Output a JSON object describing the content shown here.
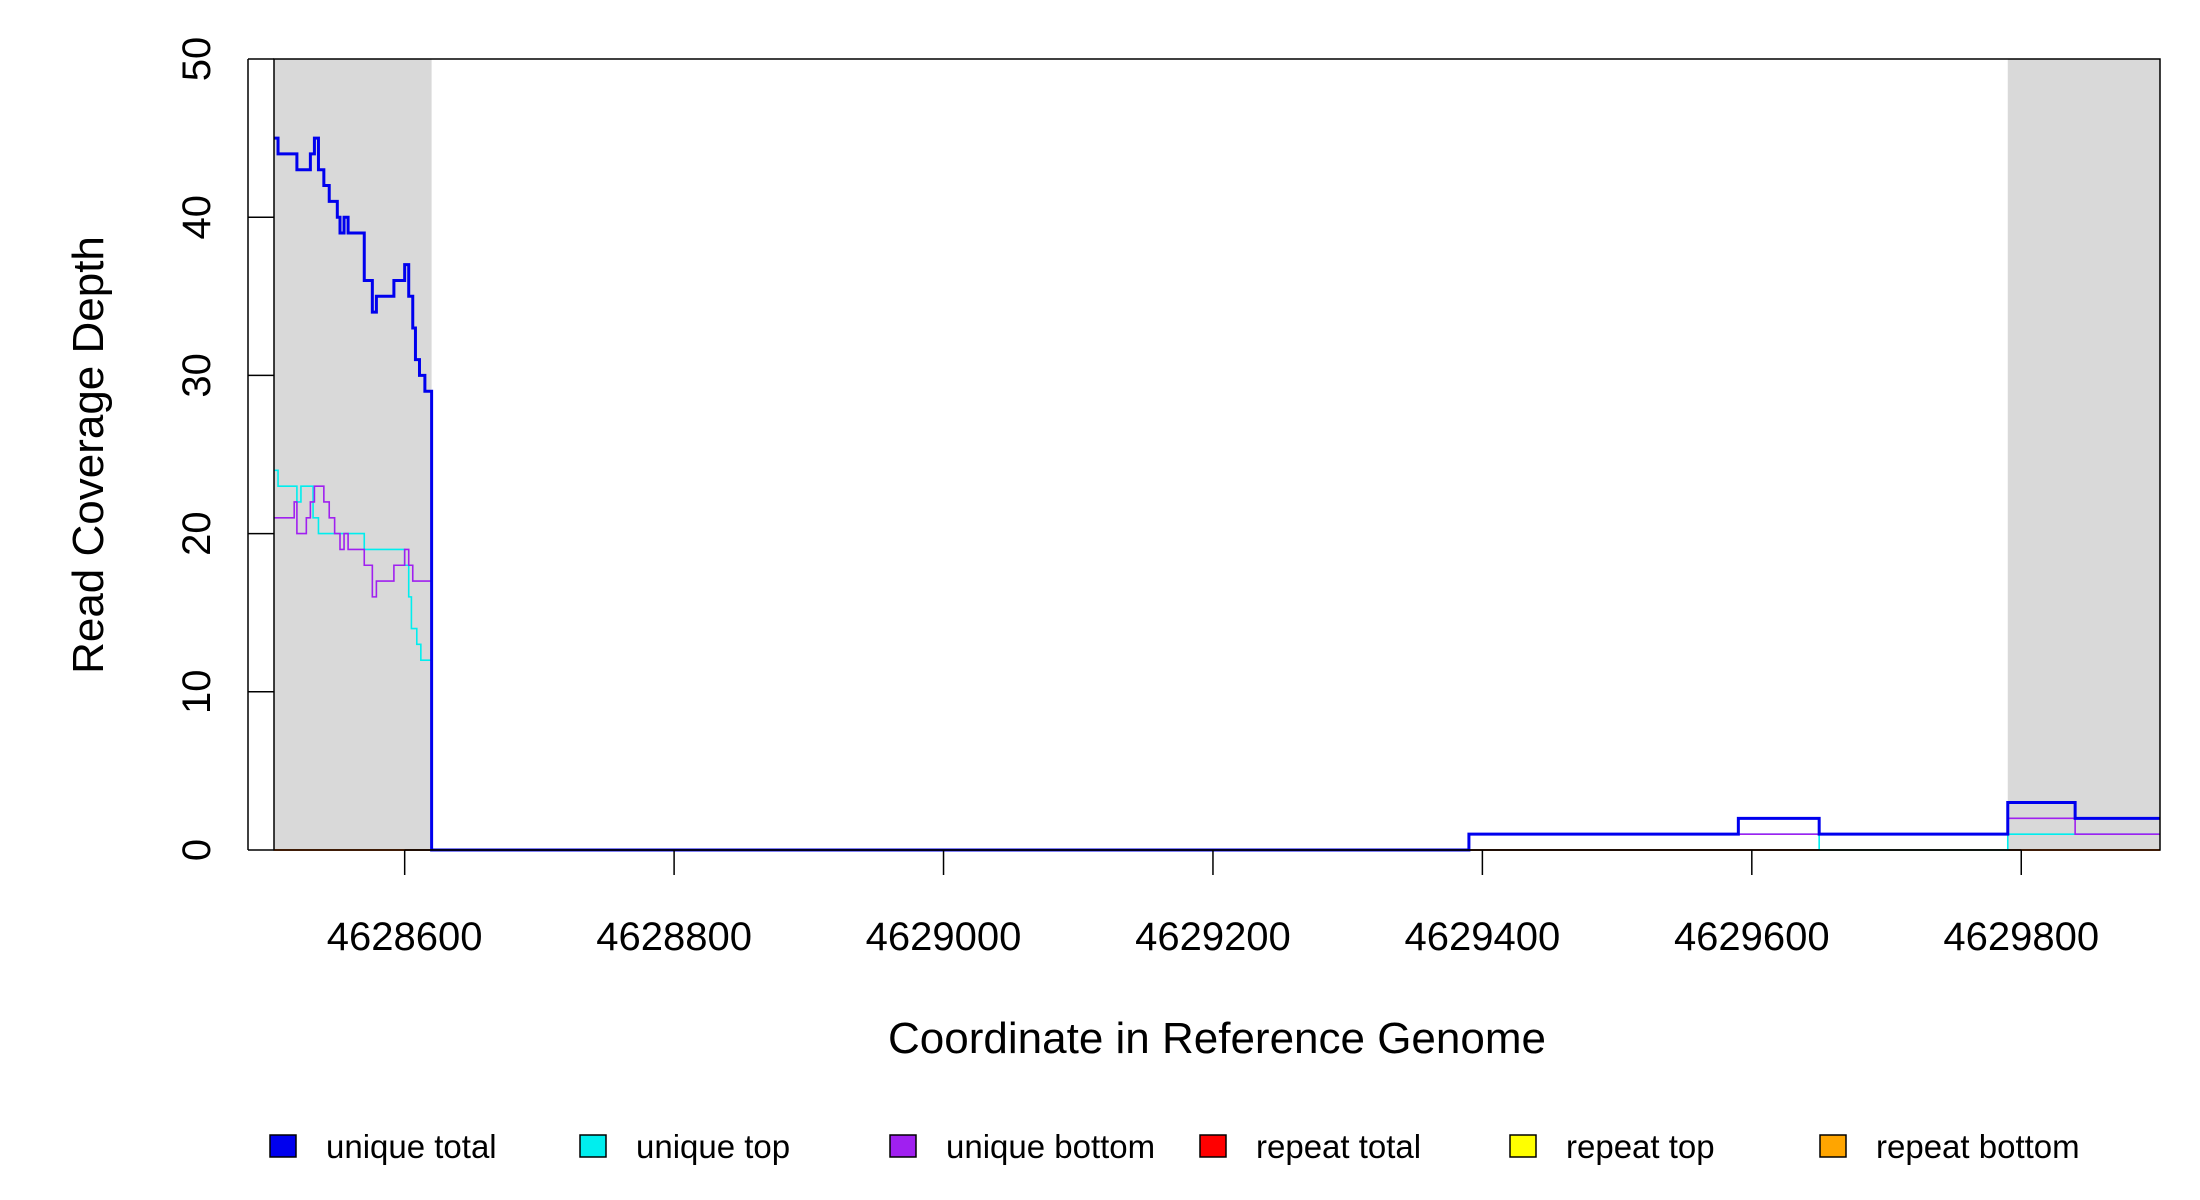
{
  "chart_data": {
    "type": "line",
    "xlabel": "Coordinate in Reference Genome",
    "ylabel": "Read Coverage Depth",
    "xlim": [
      4628503,
      4629903
    ],
    "ylim": [
      0,
      50
    ],
    "x_ticks": [
      4628600,
      4628800,
      4629000,
      4629200,
      4629400,
      4629600,
      4629800
    ],
    "x_tick_labels": [
      "4628600",
      "4628800",
      "4629000",
      "4629200",
      "4629400",
      "4629600",
      "4629800"
    ],
    "y_ticks": [
      0,
      10,
      20,
      30,
      40,
      50
    ],
    "y_tick_labels": [
      "0",
      "10",
      "20",
      "30",
      "40",
      "50"
    ],
    "grid": false,
    "legend_position": "bottom",
    "shaded_regions": [
      {
        "x": [
          4628503,
          4628620
        ],
        "color": "#d9d9d9"
      },
      {
        "x": [
          4629790,
          4629903
        ],
        "color": "#d9d9d9"
      }
    ],
    "series": [
      {
        "name": "unique total",
        "color": "#0000ee",
        "points": [
          [
            4628503,
            45
          ],
          [
            4628506,
            44
          ],
          [
            4628520,
            43
          ],
          [
            4628530,
            44
          ],
          [
            4628533,
            45
          ],
          [
            4628536,
            43
          ],
          [
            4628540,
            42
          ],
          [
            4628544,
            41
          ],
          [
            4628550,
            40
          ],
          [
            4628552,
            39
          ],
          [
            4628555,
            40
          ],
          [
            4628558,
            39
          ],
          [
            4628570,
            36
          ],
          [
            4628576,
            34
          ],
          [
            4628579,
            35
          ],
          [
            4628592,
            36
          ],
          [
            4628600,
            37
          ],
          [
            4628603,
            35
          ],
          [
            4628606,
            33
          ],
          [
            4628608,
            31
          ],
          [
            4628611,
            30
          ],
          [
            4628615,
            29
          ],
          [
            4628620,
            0
          ],
          [
            4629390,
            1
          ],
          [
            4629590,
            2
          ],
          [
            4629650,
            1
          ],
          [
            4629790,
            3
          ],
          [
            4629840,
            2
          ],
          [
            4629903,
            2
          ]
        ]
      },
      {
        "name": "unique top",
        "color": "#00eeee",
        "points": [
          [
            4628503,
            24
          ],
          [
            4628506,
            23
          ],
          [
            4628520,
            22
          ],
          [
            4628523,
            23
          ],
          [
            4628532,
            21
          ],
          [
            4628536,
            20
          ],
          [
            4628570,
            19
          ],
          [
            4628600,
            18
          ],
          [
            4628603,
            16
          ],
          [
            4628605,
            14
          ],
          [
            4628609,
            13
          ],
          [
            4628612,
            12
          ],
          [
            4628620,
            0
          ],
          [
            4629390,
            1
          ],
          [
            4629650,
            0
          ],
          [
            4629790,
            1
          ],
          [
            4629840,
            1
          ],
          [
            4629903,
            1
          ]
        ]
      },
      {
        "name": "unique bottom",
        "color": "#a020f0",
        "points": [
          [
            4628503,
            21
          ],
          [
            4628518,
            22
          ],
          [
            4628520,
            20
          ],
          [
            4628527,
            21
          ],
          [
            4628530,
            22
          ],
          [
            4628533,
            23
          ],
          [
            4628540,
            22
          ],
          [
            4628544,
            21
          ],
          [
            4628548,
            20
          ],
          [
            4628552,
            19
          ],
          [
            4628555,
            20
          ],
          [
            4628558,
            19
          ],
          [
            4628570,
            18
          ],
          [
            4628576,
            16
          ],
          [
            4628579,
            17
          ],
          [
            4628592,
            18
          ],
          [
            4628600,
            19
          ],
          [
            4628603,
            18
          ],
          [
            4628606,
            17
          ],
          [
            4628620,
            0
          ],
          [
            4629390,
            1
          ],
          [
            4629650,
            1
          ],
          [
            4629790,
            2
          ],
          [
            4629840,
            1
          ],
          [
            4629903,
            1
          ]
        ]
      },
      {
        "name": "repeat total",
        "color": "#ff0000",
        "points": [
          [
            4628503,
            0
          ],
          [
            4629903,
            0
          ]
        ]
      },
      {
        "name": "repeat top",
        "color": "#ffff00",
        "points": [
          [
            4628503,
            0
          ],
          [
            4629903,
            0
          ]
        ]
      },
      {
        "name": "repeat bottom",
        "color": "#ffa500",
        "points": [
          [
            4628503,
            0
          ],
          [
            4629903,
            0
          ]
        ]
      }
    ]
  }
}
